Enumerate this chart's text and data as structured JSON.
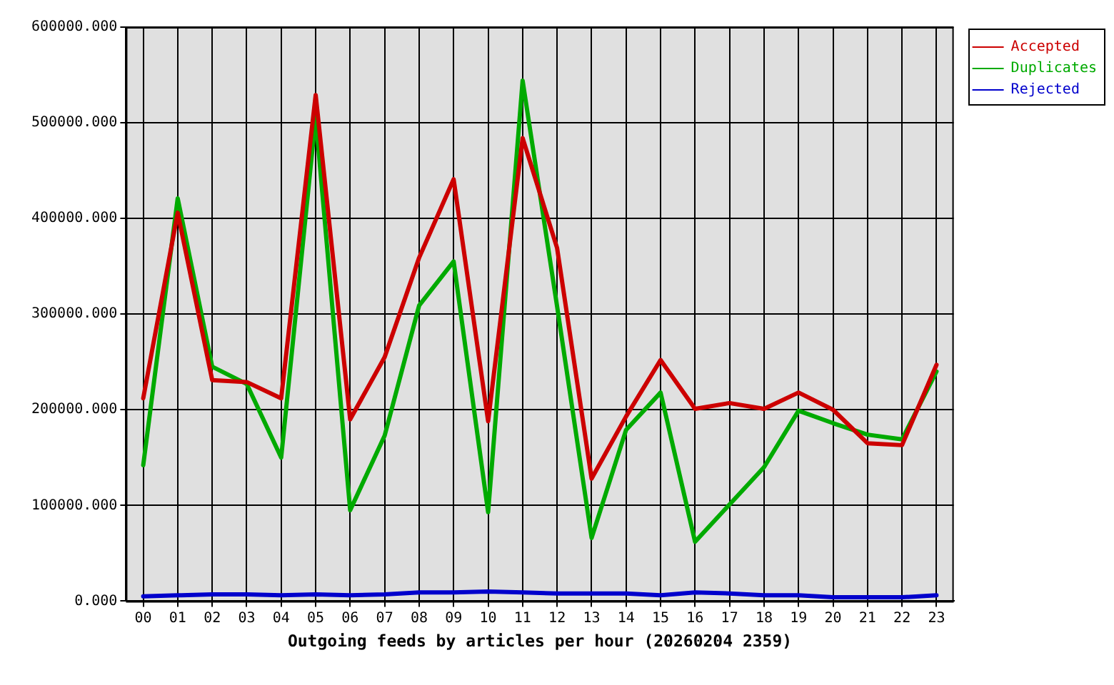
{
  "chart_data": {
    "type": "line",
    "xlabel": "Outgoing feeds by articles per hour (20260204 2359)",
    "categories": [
      "00",
      "01",
      "02",
      "03",
      "04",
      "05",
      "06",
      "07",
      "08",
      "09",
      "10",
      "11",
      "12",
      "13",
      "14",
      "15",
      "16",
      "17",
      "18",
      "19",
      "20",
      "21",
      "22",
      "23"
    ],
    "series": [
      {
        "name": "Accepted",
        "color": "#cc0000",
        "values": [
          212000,
          406000,
          231000,
          229000,
          212000,
          529000,
          190000,
          255000,
          359000,
          441000,
          188000,
          484000,
          369000,
          128000,
          193000,
          252000,
          201000,
          207000,
          201000,
          218000,
          200000,
          165000,
          163000,
          247000
        ]
      },
      {
        "name": "Duplicates",
        "color": "#00aa00",
        "values": [
          142000,
          421000,
          245000,
          227000,
          150000,
          506000,
          95000,
          173000,
          309000,
          355000,
          93000,
          544000,
          308000,
          66000,
          179000,
          218000,
          62000,
          101000,
          140000,
          199000,
          186000,
          174000,
          169000,
          240000
        ]
      },
      {
        "name": "Rejected",
        "color": "#0000cc",
        "values": [
          5000,
          6000,
          7000,
          7000,
          6000,
          7000,
          6000,
          7000,
          9000,
          9000,
          10000,
          9000,
          8000,
          8000,
          8000,
          6000,
          9000,
          8000,
          6000,
          6000,
          4000,
          4000,
          4000,
          6000
        ]
      }
    ],
    "ylim": [
      0,
      600000
    ],
    "yticks": [
      {
        "value": 0,
        "label": "0.000"
      },
      {
        "value": 100000,
        "label": "100000.000"
      },
      {
        "value": 200000,
        "label": "200000.000"
      },
      {
        "value": 300000,
        "label": "300000.000"
      },
      {
        "value": 400000,
        "label": "400000.000"
      },
      {
        "value": 500000,
        "label": "500000.000"
      },
      {
        "value": 600000,
        "label": "600000.000"
      }
    ],
    "grid": true,
    "legend": "top right",
    "marker": "none",
    "line_style": "solid"
  }
}
